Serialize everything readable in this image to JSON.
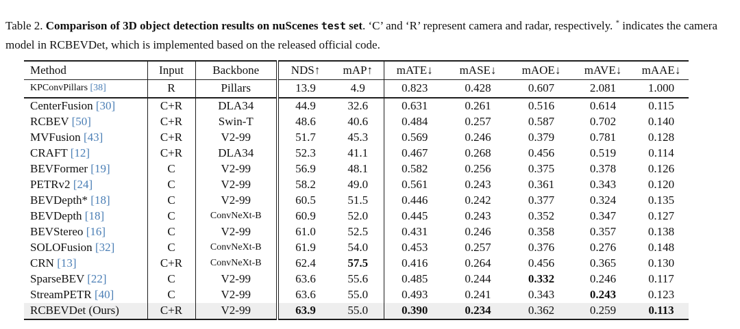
{
  "colors": {
    "citation_blue": "#4a7eb5",
    "highlight_row_bg": "#eeeeee",
    "rule_color": "#1c1c1c"
  },
  "caption": {
    "label": "Table 2.",
    "title_bold": "Comparison of 3D object detection results on nuScenes",
    "title_mono": "test",
    "title_bold_tail": "set",
    "title_period": ".",
    "sentence2": "‘C’ and ‘R’ represent camera and radar, respectively.",
    "footnote_star": "*",
    "sentence3": "indicates the camera model in RCBEVDet, which is implemented based on the released official code."
  },
  "table": {
    "headers": [
      "Method",
      "Input",
      "Backbone",
      "NDS↑",
      "mAP↑",
      "mATE↓",
      "mASE↓",
      "mAOE↓",
      "mAVE↓",
      "mAAE↓"
    ],
    "rows": [
      {
        "method": "KPConvPillars",
        "cite": "[38]",
        "input": "R",
        "backbone": "Pillars",
        "values": [
          "13.9",
          "4.9",
          "0.823",
          "0.428",
          "0.607",
          "2.081",
          "1.000"
        ],
        "bold": [],
        "small_method": true,
        "small_backbone": false,
        "rule_below": true,
        "highlight": false
      },
      {
        "method": "CenterFusion",
        "cite": "[30]",
        "input": "C+R",
        "backbone": "DLA34",
        "values": [
          "44.9",
          "32.6",
          "0.631",
          "0.261",
          "0.516",
          "0.614",
          "0.115"
        ],
        "bold": [],
        "small_method": false,
        "small_backbone": false,
        "rule_below": false,
        "highlight": false
      },
      {
        "method": "RCBEV",
        "cite": "[50]",
        "input": "C+R",
        "backbone": "Swin-T",
        "values": [
          "48.6",
          "40.6",
          "0.484",
          "0.257",
          "0.587",
          "0.702",
          "0.140"
        ],
        "bold": [],
        "small_method": false,
        "small_backbone": false,
        "rule_below": false,
        "highlight": false
      },
      {
        "method": "MVFusion",
        "cite": "[43]",
        "input": "C+R",
        "backbone": "V2-99",
        "values": [
          "51.7",
          "45.3",
          "0.569",
          "0.246",
          "0.379",
          "0.781",
          "0.128"
        ],
        "bold": [],
        "small_method": false,
        "small_backbone": false,
        "rule_below": false,
        "highlight": false
      },
      {
        "method": "CRAFT",
        "cite": "[12]",
        "input": "C+R",
        "backbone": "DLA34",
        "values": [
          "52.3",
          "41.1",
          "0.467",
          "0.268",
          "0.456",
          "0.519",
          "0.114"
        ],
        "bold": [],
        "small_method": false,
        "small_backbone": false,
        "rule_below": false,
        "highlight": false
      },
      {
        "method": "BEVFormer",
        "cite": "[19]",
        "input": "C",
        "backbone": "V2-99",
        "values": [
          "56.9",
          "48.1",
          "0.582",
          "0.256",
          "0.375",
          "0.378",
          "0.126"
        ],
        "bold": [],
        "small_method": false,
        "small_backbone": false,
        "rule_below": false,
        "highlight": false
      },
      {
        "method": "PETRv2",
        "cite": "[24]",
        "input": "C",
        "backbone": "V2-99",
        "values": [
          "58.2",
          "49.0",
          "0.561",
          "0.243",
          "0.361",
          "0.343",
          "0.120"
        ],
        "bold": [],
        "small_method": false,
        "small_backbone": false,
        "rule_below": false,
        "highlight": false
      },
      {
        "method": "BEVDepth*",
        "cite": "[18]",
        "input": "C",
        "backbone": "V2-99",
        "values": [
          "60.5",
          "51.5",
          "0.446",
          "0.242",
          "0.377",
          "0.324",
          "0.135"
        ],
        "bold": [],
        "small_method": false,
        "small_backbone": false,
        "rule_below": false,
        "highlight": false
      },
      {
        "method": "BEVDepth",
        "cite": "[18]",
        "input": "C",
        "backbone": "ConvNeXt-B",
        "values": [
          "60.9",
          "52.0",
          "0.445",
          "0.243",
          "0.352",
          "0.347",
          "0.127"
        ],
        "bold": [],
        "small_method": false,
        "small_backbone": true,
        "rule_below": false,
        "highlight": false
      },
      {
        "method": "BEVStereo",
        "cite": "[16]",
        "input": "C",
        "backbone": "V2-99",
        "values": [
          "61.0",
          "52.5",
          "0.431",
          "0.246",
          "0.358",
          "0.357",
          "0.138"
        ],
        "bold": [],
        "small_method": false,
        "small_backbone": false,
        "rule_below": false,
        "highlight": false
      },
      {
        "method": "SOLOFusion",
        "cite": "[32]",
        "input": "C",
        "backbone": "ConvNeXt-B",
        "values": [
          "61.9",
          "54.0",
          "0.453",
          "0.257",
          "0.376",
          "0.276",
          "0.148"
        ],
        "bold": [],
        "small_method": false,
        "small_backbone": true,
        "rule_below": false,
        "highlight": false
      },
      {
        "method": "CRN",
        "cite": "[13]",
        "input": "C+R",
        "backbone": "ConvNeXt-B",
        "values": [
          "62.4",
          "57.5",
          "0.416",
          "0.264",
          "0.456",
          "0.365",
          "0.130"
        ],
        "bold": [
          1
        ],
        "small_method": false,
        "small_backbone": true,
        "rule_below": false,
        "highlight": false
      },
      {
        "method": "SparseBEV",
        "cite": "[22]",
        "input": "C",
        "backbone": "V2-99",
        "values": [
          "63.6",
          "55.6",
          "0.485",
          "0.244",
          "0.332",
          "0.246",
          "0.117"
        ],
        "bold": [
          4
        ],
        "small_method": false,
        "small_backbone": false,
        "rule_below": false,
        "highlight": false
      },
      {
        "method": "StreamPETR",
        "cite": "[40]",
        "input": "C",
        "backbone": "V2-99",
        "values": [
          "63.6",
          "55.0",
          "0.493",
          "0.241",
          "0.343",
          "0.243",
          "0.123"
        ],
        "bold": [
          5
        ],
        "small_method": false,
        "small_backbone": false,
        "rule_below": false,
        "highlight": false
      },
      {
        "method": "RCBEVDet (Ours)",
        "cite": "",
        "input": "C+R",
        "backbone": "V2-99",
        "values": [
          "63.9",
          "55.0",
          "0.390",
          "0.234",
          "0.362",
          "0.259",
          "0.113"
        ],
        "bold": [
          0,
          2,
          3,
          6
        ],
        "small_method": false,
        "small_backbone": false,
        "rule_below": false,
        "highlight": true
      }
    ]
  }
}
